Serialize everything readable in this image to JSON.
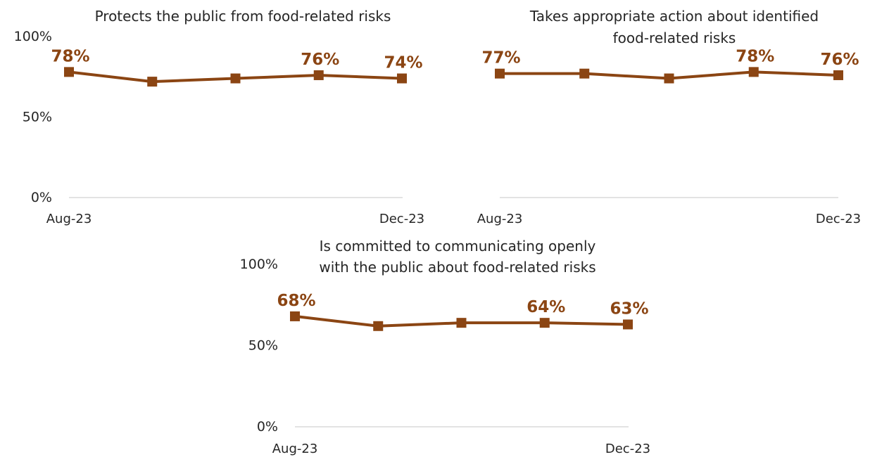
{
  "colors": {
    "series": "#8b4513",
    "label": "#8b4513",
    "axis": "#e3e3e3",
    "text": "#262626"
  },
  "chart_data": [
    {
      "type": "line",
      "title": "Protects the public from food-related risks",
      "ylim": [
        0,
        100
      ],
      "yticks": [
        "100%",
        "50%",
        "0%"
      ],
      "x_tick_labels": [
        "Aug-23",
        "Dec-23"
      ],
      "x": [
        "Aug-23",
        "Sep-23",
        "Oct-23",
        "Nov-23",
        "Dec-23"
      ],
      "values": [
        78,
        72,
        74,
        76,
        74
      ],
      "data_labels": [
        "78%",
        "",
        "",
        "76%",
        "74%"
      ],
      "grid": false
    },
    {
      "type": "line",
      "title": [
        "Takes appropriate action about identified",
        "food-related risks"
      ],
      "ylim": [
        0,
        100
      ],
      "yticks": [],
      "x_tick_labels": [
        "Aug-23",
        "Dec-23"
      ],
      "x": [
        "Aug-23",
        "Sep-23",
        "Oct-23",
        "Nov-23",
        "Dec-23"
      ],
      "values": [
        77,
        77,
        74,
        78,
        76
      ],
      "data_labels": [
        "77%",
        "",
        "",
        "78%",
        "76%"
      ],
      "grid": false
    },
    {
      "type": "line",
      "title": [
        "Is committed to communicating openly",
        "with the public about food-related risks"
      ],
      "ylim": [
        0,
        100
      ],
      "yticks": [
        "100%",
        "50%",
        "0%"
      ],
      "x_tick_labels": [
        "Aug-23",
        "Dec-23"
      ],
      "x": [
        "Aug-23",
        "Sep-23",
        "Oct-23",
        "Nov-23",
        "Dec-23"
      ],
      "values": [
        68,
        62,
        64,
        64,
        63
      ],
      "data_labels": [
        "68%",
        "",
        "",
        "64%",
        "63%"
      ],
      "grid": false
    }
  ]
}
